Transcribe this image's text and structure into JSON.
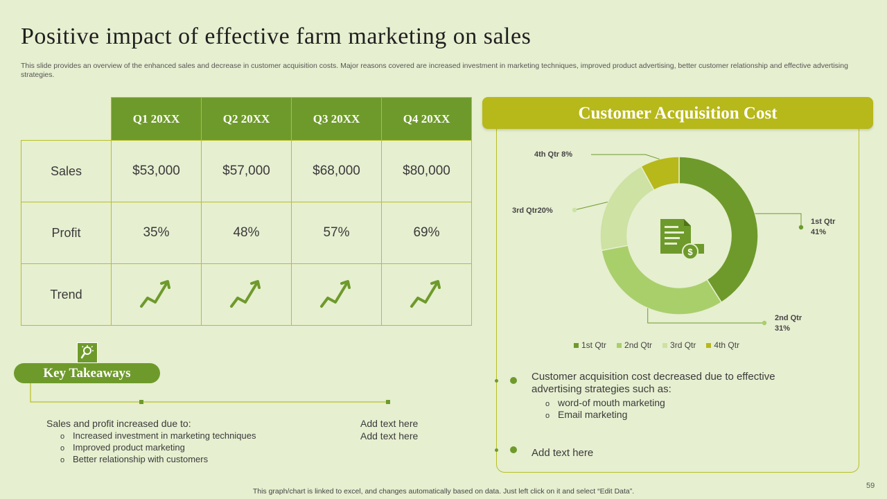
{
  "title": "Positive impact of effective farm marketing on sales",
  "subtitle": "This slide provides an overview of the enhanced sales and decrease in customer acquisition costs. Major reasons covered are increased investment in marketing techniques, improved product advertising, better customer relationship and effective advertising strategies.",
  "table": {
    "headers": [
      "Q1 20XX",
      "Q2 20XX",
      "Q3 20XX",
      "Q4 20XX"
    ],
    "rows": [
      {
        "label": "Sales",
        "cells": [
          "$53,000",
          "$57,000",
          "$68,000",
          "$80,000"
        ]
      },
      {
        "label": "Profit",
        "cells": [
          "35%",
          "48%",
          "57%",
          "69%"
        ]
      },
      {
        "label": "Trend",
        "icon": "trend-up-arrow-icon"
      }
    ]
  },
  "key_takeaways": {
    "heading": "Key Takeaways",
    "icon": "lightbulb-magnifier-icon",
    "intro": "Sales and profit increased due to:",
    "items": [
      "Increased investment in marketing techniques",
      "Improved product marketing",
      "Better relationship with customers"
    ],
    "bullet": "o",
    "add_text": [
      "Add text here",
      "Add text here"
    ]
  },
  "cac": {
    "heading": "Customer Acquisition Cost",
    "center_icon": "invoice-dollar-icon",
    "labels": {
      "q1a": "1st Qtr",
      "q1b": "41%",
      "q2a": "2nd Qtr",
      "q2b": "31%",
      "q3": "3rd Qtr20%",
      "q4": "4th Qtr 8%"
    },
    "text": "Customer acquisition cost decreased due to effective advertising strategies such as:",
    "items": [
      "word-of mouth marketing",
      "Email marketing"
    ],
    "bullet": "o",
    "add_text": "Add text here"
  },
  "chart_data": {
    "type": "pie",
    "donut": true,
    "categories": [
      "1st Qtr",
      "2nd Qtr",
      "3rd Qtr",
      "4th Qtr"
    ],
    "values": [
      41,
      31,
      20,
      8
    ],
    "colors": [
      "#6e9a2b",
      "#a9cf6b",
      "#cde2a3",
      "#b7b81a"
    ],
    "legend_position": "bottom"
  },
  "footer": "This graph/chart is linked to excel,  and changes automatically based on data. Just left click on it and select “Edit Data”.",
  "page_number": "59"
}
